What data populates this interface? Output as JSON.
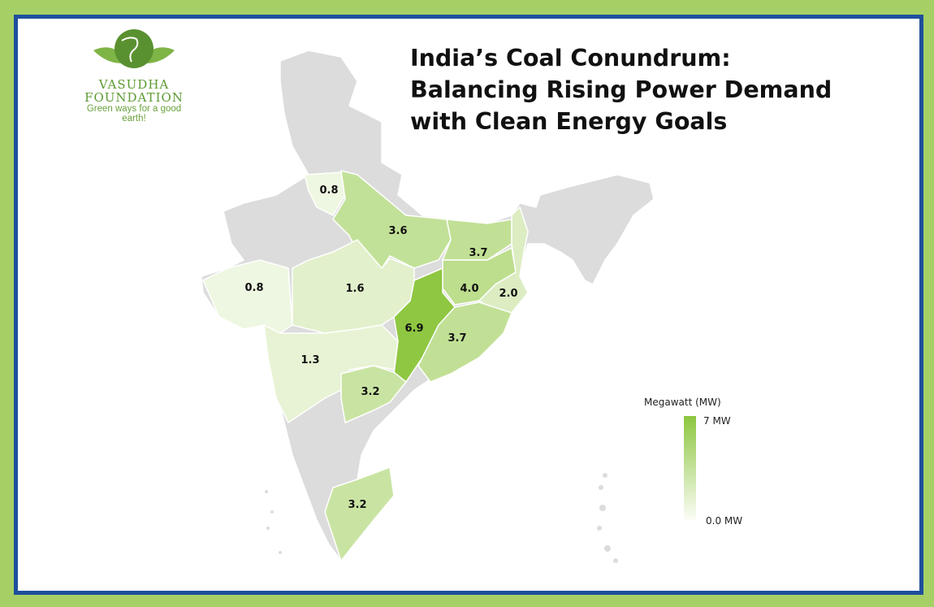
{
  "title": "India’s Coal Conundrum: Balancing Rising Power Demand with Clean Energy Goals",
  "logo": {
    "name_line1": "VASUDHA",
    "name_line2": "FOUNDATION",
    "tagline": "Green ways for a good earth!"
  },
  "legend": {
    "title": "Megawatt (MW)",
    "max_label": "7 MW",
    "min_label": "0.0 MW",
    "max": 7,
    "min": 0,
    "color_max": "#8dc63f",
    "color_min": "#fbfdf6"
  },
  "colors": {
    "frame": "#a6d066",
    "border": "#1e4f9c",
    "base_land": "#dcdcdc"
  },
  "regions": [
    {
      "value": 0.8,
      "label": "0.8"
    },
    {
      "value": 3.6,
      "label": "3.6"
    },
    {
      "value": 3.7,
      "label": "3.7"
    },
    {
      "value": 4.0,
      "label": "4.0"
    },
    {
      "value": 2.0,
      "label": "2.0"
    },
    {
      "value": 6.9,
      "label": "6.9"
    },
    {
      "value": 3.7,
      "label": "3.7"
    },
    {
      "value": 1.6,
      "label": "1.6"
    },
    {
      "value": 0.8,
      "label": "0.8"
    },
    {
      "value": 1.3,
      "label": "1.3"
    },
    {
      "value": 3.2,
      "label": "3.2"
    },
    {
      "value": 3.2,
      "label": "3.2"
    }
  ]
}
